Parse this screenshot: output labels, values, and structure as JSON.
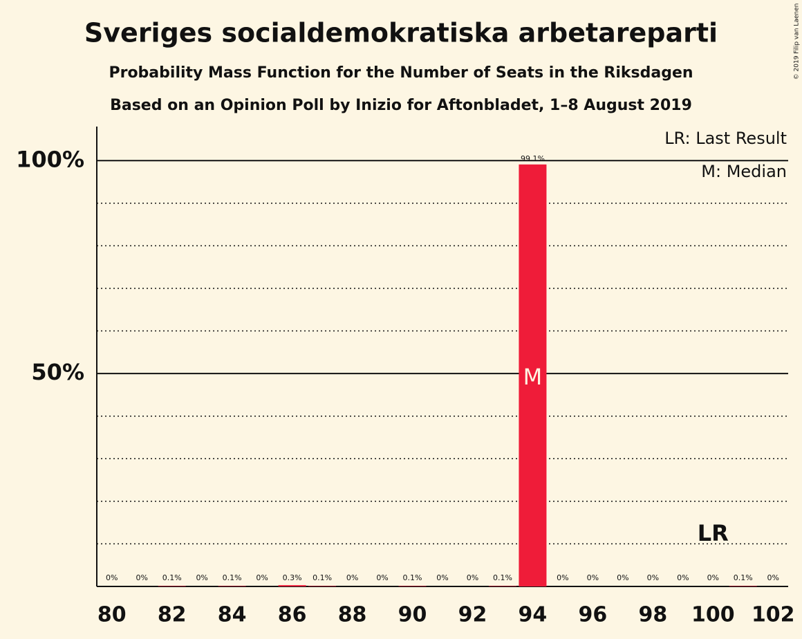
{
  "chart_data": {
    "type": "bar",
    "title": "Sveriges socialdemokratiska arbetareparti",
    "subtitle": "Probability Mass Function for the Number of Seats in the Riksdagen",
    "subtitle2": "Based on an Opinion Poll by Inizio for Aftonbladet, 1–8 August 2019",
    "copyright": "© 2019 Filip van Laenen",
    "legend_lr": "LR: Last Result",
    "legend_m": "M: Median",
    "lr_label": "LR",
    "median_label": "M",
    "last_result": 100,
    "median": 94,
    "categories": [
      80,
      null,
      82,
      null,
      84,
      null,
      86,
      null,
      88,
      null,
      90,
      null,
      92,
      null,
      94,
      null,
      96,
      null,
      98,
      null,
      100,
      null,
      102
    ],
    "values": [
      0,
      0,
      0.1,
      0,
      0.1,
      0,
      0.3,
      0.1,
      0,
      0,
      0.1,
      0,
      0,
      0.1,
      99.1,
      0,
      0,
      0,
      0,
      0,
      0,
      0.1,
      0
    ],
    "value_labels": [
      "0%",
      "0%",
      "0.1%",
      "0%",
      "0.1%",
      "0%",
      "0.3%",
      "0.1%",
      "0%",
      "0%",
      "0.1%",
      "0%",
      "0%",
      "0.1%",
      "99.1%",
      "0%",
      "0%",
      "0%",
      "0%",
      "0%",
      "0%",
      "0.1%",
      "0%"
    ],
    "color": "#ef1c39",
    "ylim": [
      0,
      108
    ],
    "yticks": [
      {
        "value": 50,
        "label": "50%"
      },
      {
        "value": 100,
        "label": "100%"
      }
    ],
    "minor_yticks": [
      10,
      20,
      30,
      40,
      60,
      70,
      80,
      90
    ],
    "grid": true
  }
}
